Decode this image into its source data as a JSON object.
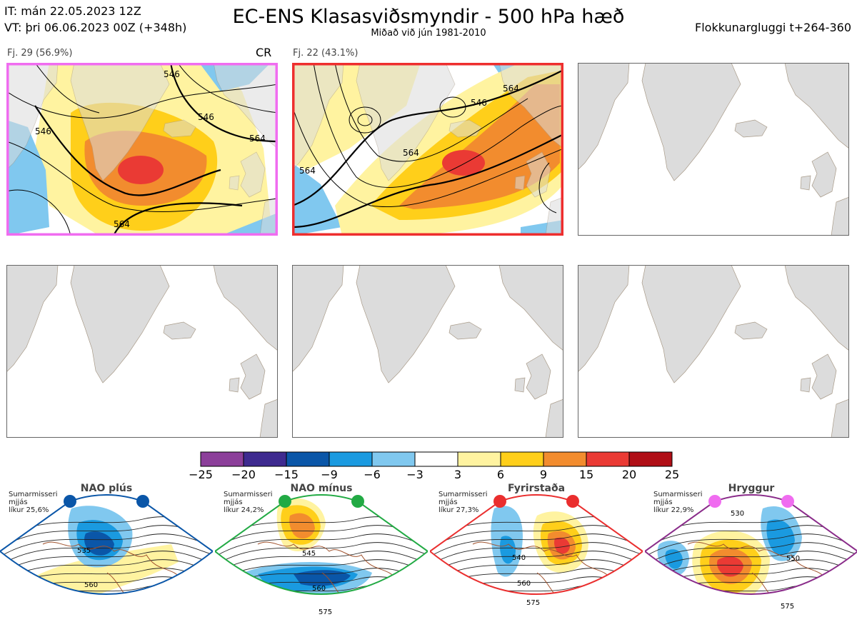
{
  "header": {
    "it_line": "IT: mán 22.05.2023 12Z",
    "vt_line": "VT: þri 06.06.2023 00Z  (+348h)",
    "title": "EC-ENS Klasasviðsmyndir - 500 hPa hæð",
    "subtitle": "Miðað við jún 1981-2010",
    "window": "Flokkunargluggi t+264-360"
  },
  "panels": [
    {
      "label": "Fj. 29 (56.9%)",
      "tag": "CR",
      "border": "#f06cf0",
      "contours": [
        "546",
        "546",
        "564",
        "564",
        "546"
      ]
    },
    {
      "label": "Fj. 22 (43.1%)",
      "tag": "",
      "border": "#ee2e2e",
      "contours": [
        "546",
        "564",
        "564",
        "564"
      ]
    }
  ],
  "colorbar": {
    "ticks": [
      "−25",
      "−20",
      "−15",
      "−9",
      "−6",
      "−3",
      "3",
      "6",
      "9",
      "15",
      "20",
      "25"
    ],
    "colors": [
      "#8c3f9a",
      "#3e2a8f",
      "#0a56a8",
      "#1a9ae0",
      "#80c8ef",
      "#ffffff",
      "#fff3a0",
      "#ffcf1a",
      "#f28c2e",
      "#ea3a34",
      "#b00e16"
    ]
  },
  "regimes": [
    {
      "name": "NAO plús",
      "season": "Sumarmisseri",
      "smooth": "mjjás",
      "prob": "líkur 25,6%",
      "color": "#0a56a8",
      "labels": [
        "535",
        "560"
      ]
    },
    {
      "name": "NAO mínus",
      "season": "Sumarmisseri",
      "smooth": "mjjás",
      "prob": "líkur 24,2%",
      "color": "#22aa44",
      "labels": [
        "545",
        "560",
        "575"
      ]
    },
    {
      "name": "Fyrirstaða",
      "season": "Sumarmisseri",
      "smooth": "mjjás",
      "prob": "líkur 27,3%",
      "color": "#ea2e2e",
      "labels": [
        "540",
        "560",
        "575"
      ]
    },
    {
      "name": "Hryggur",
      "season": "Sumarmisseri",
      "smooth": "mjjás",
      "prob": "líkur 22,9%",
      "color": "#8a2c8a",
      "dot": "#f06cf0",
      "labels": [
        "530",
        "550",
        "575"
      ]
    }
  ]
}
